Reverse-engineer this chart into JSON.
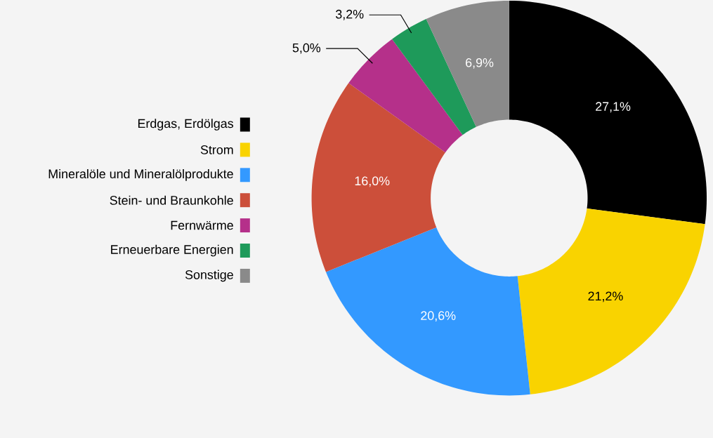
{
  "chart_data": {
    "type": "donut",
    "categories": [
      "Erdgas, Erdölgas",
      "Strom",
      "Mineralöle und Mineralölprodukte",
      "Stein- und Braunkohle",
      "Fernwärme",
      "Erneuerbare Energien",
      "Sonstige"
    ],
    "values": [
      27.1,
      21.2,
      20.6,
      16.0,
      5.0,
      3.2,
      6.9
    ],
    "value_labels": [
      "27,1%",
      "21,2%",
      "20,6%",
      "16,0%",
      "5,0%",
      "3,2%",
      "6,9%"
    ],
    "colors": [
      "#000000",
      "#f9d300",
      "#3399ff",
      "#cc4f3a",
      "#b5308a",
      "#1e9a5a",
      "#8a8a8a"
    ],
    "legend": "left"
  }
}
